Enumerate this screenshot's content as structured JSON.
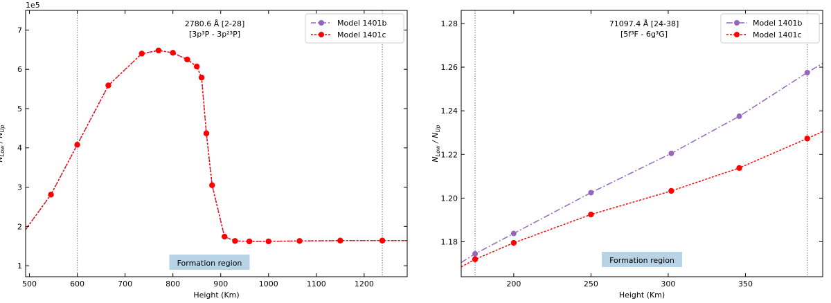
{
  "chart_data": [
    {
      "type": "line",
      "offset_label": "1e5",
      "xlabel": "Height (Km)",
      "ylabel": "N_Low / N_Up",
      "ylabel_main": "N",
      "ylabel_sub1": "Low",
      "ylabel_mid": " / N",
      "ylabel_sub2": "Up",
      "xlim": [
        492,
        1290
      ],
      "ylim": [
        0.72,
        7.5
      ],
      "xticks": [
        500,
        600,
        700,
        800,
        900,
        1000,
        1100,
        1200
      ],
      "yticks": [
        1,
        2,
        3,
        4,
        5,
        6,
        7
      ],
      "annotation_line1": "2780.6 Å [2-28]",
      "annotation_line2": "[3p³P - 3p²³P]",
      "formation_label": "Formation region",
      "vlines": [
        600,
        1238
      ],
      "legend_position": "upper right",
      "series": [
        {
          "name": "Model 1401b",
          "color": "#9467bd",
          "x": [
            492,
            545,
            600,
            665,
            735,
            770,
            800,
            830,
            850,
            860,
            870,
            882,
            908,
            930,
            960,
            1000,
            1065,
            1150,
            1238,
            1290
          ],
          "y": [
            1.92,
            2.81,
            4.08,
            5.59,
            6.4,
            6.48,
            6.42,
            6.25,
            6.07,
            5.79,
            4.37,
            3.05,
            1.74,
            1.63,
            1.62,
            1.62,
            1.63,
            1.64,
            1.64,
            1.64
          ]
        },
        {
          "name": "Model 1401c",
          "color": "#ff0000",
          "x": [
            492,
            545,
            600,
            665,
            735,
            770,
            800,
            830,
            850,
            860,
            870,
            882,
            908,
            930,
            960,
            1000,
            1065,
            1150,
            1238,
            1290
          ],
          "y": [
            1.92,
            2.81,
            4.08,
            5.59,
            6.4,
            6.48,
            6.42,
            6.25,
            6.07,
            5.79,
            4.37,
            3.05,
            1.74,
            1.63,
            1.62,
            1.62,
            1.63,
            1.64,
            1.64,
            1.64
          ]
        }
      ]
    },
    {
      "type": "line",
      "xlabel": "Height (Km)",
      "ylabel": "N_Low / N_Up",
      "ylabel_main": "N",
      "ylabel_sub1": "Low",
      "ylabel_mid": " / N",
      "ylabel_sub2": "Up",
      "xlim": [
        166,
        400
      ],
      "ylim": [
        1.164,
        1.286
      ],
      "xticks": [
        200,
        250,
        300,
        350
      ],
      "yticks": [
        1.18,
        1.2,
        1.22,
        1.24,
        1.26,
        1.28
      ],
      "annotation_line1": "71097.4 Å [24-38]",
      "annotation_line2": "[5f³F - 6g³G]",
      "formation_label": "Formation region",
      "vlines": [
        175,
        390
      ],
      "legend_position": "upper right",
      "series": [
        {
          "name": "Model 1401b",
          "color": "#9467bd",
          "x": [
            166,
            175,
            200,
            250,
            302,
            346,
            390,
            400
          ],
          "y": [
            1.1705,
            1.1745,
            1.1838,
            1.2025,
            1.2205,
            1.2375,
            1.2575,
            1.2618
          ]
        },
        {
          "name": "Model 1401c",
          "color": "#ff0000",
          "x": [
            166,
            175,
            200,
            250,
            302,
            346,
            390,
            400
          ],
          "y": [
            1.1685,
            1.172,
            1.1795,
            1.1925,
            1.2033,
            1.2138,
            1.2273,
            1.2305
          ]
        }
      ]
    }
  ]
}
